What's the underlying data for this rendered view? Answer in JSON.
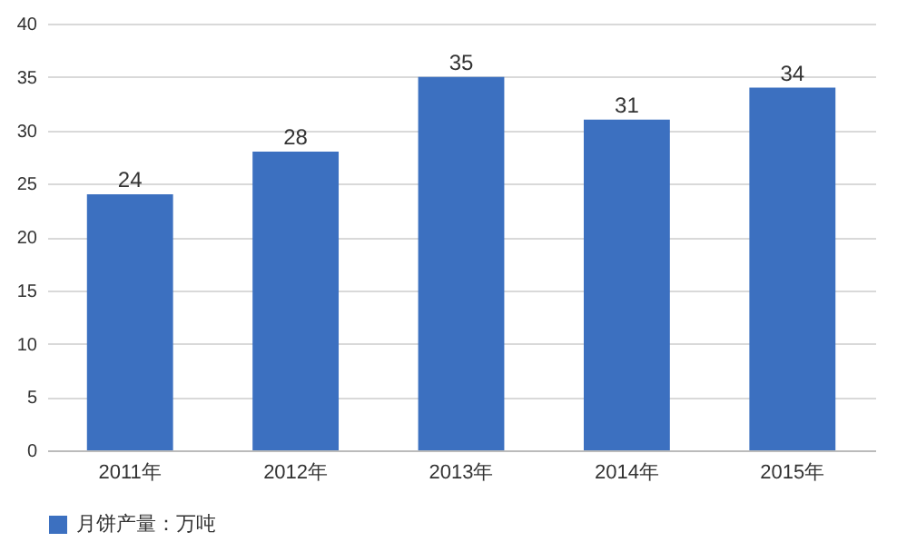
{
  "chart_data": {
    "type": "bar",
    "categories": [
      "2011年",
      "2012年",
      "2013年",
      "2014年",
      "2015年"
    ],
    "series": [
      {
        "name": "月饼产量：万吨",
        "color": "#3c70c0",
        "values": [
          24,
          28,
          35,
          31,
          34
        ]
      }
    ],
    "ylim": [
      0,
      40
    ],
    "yticks": [
      0,
      5,
      10,
      15,
      20,
      25,
      30,
      35,
      40
    ],
    "grid": "y",
    "legend": "bottom",
    "data_labels": true
  }
}
